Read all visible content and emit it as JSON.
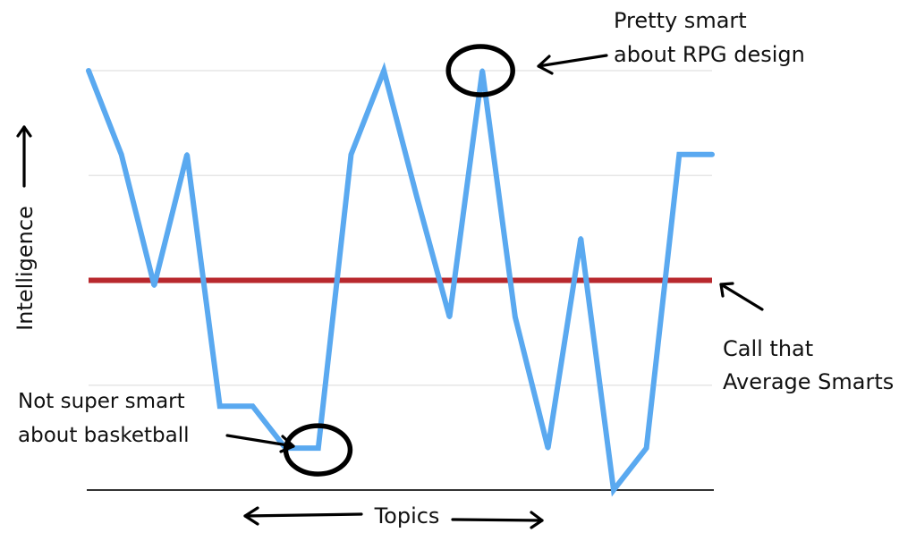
{
  "chart_data": {
    "type": "line",
    "x": [
      1,
      2,
      3,
      4,
      5,
      6,
      7,
      8,
      9,
      10,
      11,
      12,
      13,
      14,
      15,
      16,
      17,
      18,
      19,
      20
    ],
    "series": [
      {
        "values": [
          8,
          6.4,
          3.9,
          6.4,
          1.6,
          1.6,
          0.8,
          0.8,
          6.4,
          8,
          5.6,
          3.3,
          8,
          3.3,
          0.8,
          4.8,
          0,
          0.8,
          6.4,
          6.4
        ]
      }
    ],
    "average_value": 4,
    "ylim": [
      0,
      8
    ],
    "grid": true,
    "xlabel": "Topics",
    "ylabel": "Intelligence",
    "colors": {
      "line": "#5aa9f0",
      "average": "#b8282d",
      "grid": "#e6e6e6",
      "axis": "#333333"
    },
    "annotations": {
      "high_1": "Pretty smart",
      "high_2": "about RPG design",
      "avg_1": "Call that",
      "avg_2": "Average Smarts",
      "low_1": "Not super smart",
      "low_2": "about basketball"
    }
  }
}
